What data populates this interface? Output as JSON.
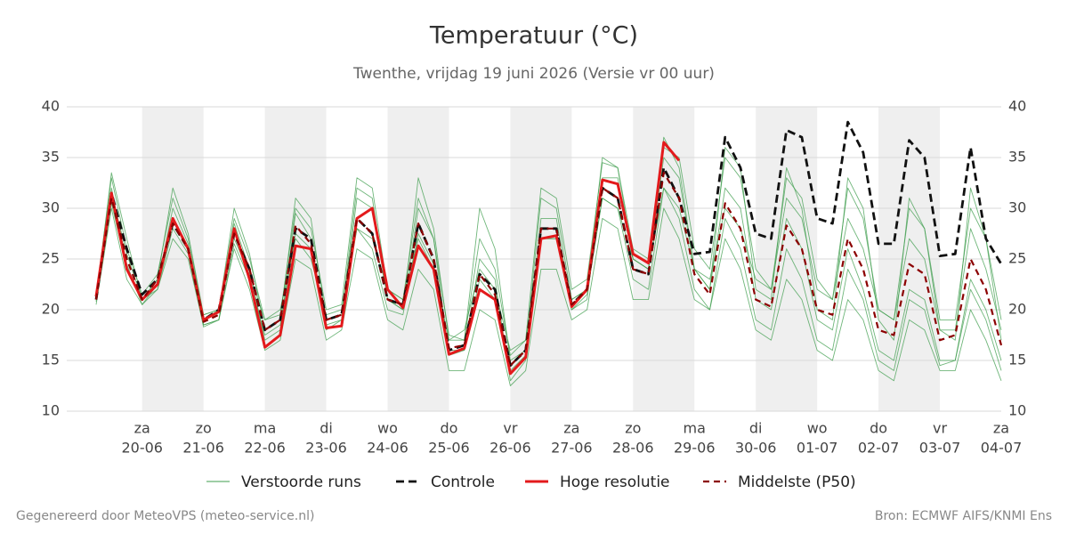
{
  "chart_data": {
    "type": "line",
    "title": "Temperatuur (°C)",
    "subtitle": "Twenthe, vrijdag 19 juni 2026 (Versie vr 00 uur)",
    "footer_left": "Gegenereerd door MeteoVPS (meteo-service.nl)",
    "footer_right": "Bron: ECMWF AIFS/KNMI Ens",
    "categories": [
      null,
      null,
      null,
      [
        "za",
        "20-06"
      ],
      null,
      null,
      null,
      [
        "zo",
        "21-06"
      ],
      null,
      null,
      null,
      [
        "ma",
        "22-06"
      ],
      null,
      null,
      null,
      [
        "di",
        "23-06"
      ],
      null,
      null,
      null,
      [
        "wo",
        "24-06"
      ],
      null,
      null,
      null,
      [
        "do",
        "25-06"
      ],
      null,
      null,
      null,
      [
        "vr",
        "26-06"
      ],
      null,
      null,
      null,
      [
        "za",
        "27-06"
      ],
      null,
      null,
      null,
      [
        "zo",
        "28-06"
      ],
      null,
      null,
      null,
      [
        "ma",
        "29-06"
      ],
      null,
      null,
      null,
      [
        "di",
        "30-06"
      ],
      null,
      null,
      null,
      [
        "wo",
        "01-07"
      ],
      null,
      null,
      null,
      [
        "do",
        "02-07"
      ],
      null,
      null,
      null,
      [
        "vr",
        "03-07"
      ],
      null,
      null,
      null,
      [
        "za",
        "04-07"
      ]
    ],
    "ylim": [
      10,
      40
    ],
    "yticks": [
      10,
      15,
      20,
      25,
      30,
      35,
      40
    ],
    "grid": true,
    "series": [
      {
        "name": "Verstoorde runs",
        "color": "#3f9e4d",
        "style": "thin",
        "values": [
          [
            21.5,
            33,
            26,
            21.5,
            23.5,
            31,
            27,
            19.5,
            20,
            29,
            25,
            19,
            19.5,
            30,
            28,
            20,
            20.5,
            33,
            32,
            22,
            21,
            31,
            27,
            17.5,
            17,
            27,
            24,
            15.5,
            17,
            32,
            31,
            22,
            23,
            34.5,
            34,
            26,
            25,
            36,
            35,
            26,
            24,
            35,
            33,
            24,
            22,
            33,
            31,
            23,
            21,
            32,
            29,
            20,
            19,
            30,
            28,
            19,
            19,
            30,
            27,
            19
          ],
          [
            20.5,
            30,
            23,
            20.5,
            22,
            27,
            25,
            18.5,
            19,
            26,
            22,
            16,
            17,
            25,
            24,
            17,
            18,
            26,
            25,
            19,
            18,
            24,
            22,
            14,
            14,
            20,
            19,
            12.5,
            14,
            24,
            24,
            19,
            20,
            29,
            28,
            21,
            21,
            30,
            27,
            21,
            20,
            27,
            24,
            18,
            17,
            23,
            21,
            16,
            15,
            21,
            19,
            14,
            13,
            19,
            18,
            14,
            14,
            20,
            17,
            13
          ],
          [
            21,
            32,
            24.5,
            20.5,
            22.5,
            30,
            26.5,
            18.5,
            19,
            28.5,
            24,
            17,
            18,
            29.5,
            27,
            18,
            19,
            31,
            30,
            21,
            20,
            30,
            27,
            15.5,
            16,
            25,
            23,
            13,
            15,
            29,
            29,
            20,
            21,
            33,
            33,
            25,
            24,
            35,
            33,
            24,
            22,
            32,
            30,
            21,
            20,
            29,
            26,
            19,
            18,
            26,
            22,
            16,
            15,
            22,
            21,
            15,
            15,
            23,
            20,
            15
          ],
          [
            21.2,
            31.5,
            25.5,
            21,
            23,
            29,
            26,
            19,
            20,
            27,
            23.5,
            19,
            20,
            27,
            25,
            19.5,
            20,
            28,
            27,
            22,
            21,
            27,
            24,
            17,
            18,
            24,
            22,
            16,
            17,
            27,
            27,
            21,
            22,
            31,
            30,
            25,
            24,
            32,
            30,
            24,
            23,
            30,
            28,
            23,
            22,
            31,
            29,
            22,
            21,
            29,
            26,
            20,
            19,
            27,
            25,
            18,
            18,
            28,
            24,
            18
          ],
          [
            20.8,
            30.5,
            24,
            21,
            22,
            28,
            25.5,
            18.3,
            19,
            26.5,
            23,
            17.5,
            18.5,
            27.5,
            26,
            18.5,
            19,
            28,
            26,
            20,
            19.5,
            27.5,
            24.5,
            16,
            16,
            23,
            21,
            14,
            15.5,
            27,
            27,
            20,
            21.5,
            31,
            30,
            23,
            22,
            32,
            29,
            22,
            20,
            29,
            26,
            19,
            18,
            26,
            23,
            17,
            16,
            24,
            21,
            15,
            14,
            21,
            20,
            14.5,
            15,
            22,
            19,
            14
          ],
          [
            21,
            33.5,
            27,
            21,
            23,
            32,
            27.5,
            19.5,
            20,
            30,
            25.5,
            18,
            19,
            31,
            29,
            19,
            19.5,
            32,
            31,
            21,
            20,
            33,
            28,
            17,
            17,
            30,
            26,
            15,
            16,
            31,
            30,
            21,
            22,
            35,
            34,
            25,
            24,
            37,
            34,
            24,
            22,
            36,
            34,
            22,
            21,
            34,
            30,
            20,
            19,
            33,
            30,
            19,
            17,
            31,
            28,
            18,
            17,
            32,
            27,
            17
          ]
        ]
      },
      {
        "name": "Controle",
        "color": "#111111",
        "style": "dashed",
        "values": [
          21,
          31.5,
          26,
          21.5,
          23,
          28.5,
          26,
          19,
          20,
          27.5,
          24,
          18,
          19,
          28,
          27,
          19,
          19.5,
          29,
          27.5,
          21,
          20.5,
          28.5,
          25,
          16,
          16.5,
          23.5,
          22,
          14.5,
          16,
          28,
          28,
          20.5,
          22,
          32,
          31,
          24,
          23.5,
          34,
          31,
          25.5,
          25.7,
          37,
          34,
          27.5,
          27,
          37.7,
          37,
          29,
          28.5,
          38.5,
          35.5,
          26.5,
          26.5,
          36.7,
          35,
          25.3,
          25.5,
          36,
          27,
          24.5
        ]
      },
      {
        "name": "Hoge resolutie",
        "color": "#e31a1c",
        "style": "solid",
        "values": [
          21.3,
          31.5,
          24,
          21,
          22.5,
          29,
          26,
          19,
          19.8,
          28,
          23,
          16.3,
          17.5,
          26.3,
          26,
          18.2,
          18.4,
          29,
          30,
          22,
          20.2,
          26.3,
          24,
          15.6,
          16.2,
          22,
          21,
          13.7,
          15.3,
          27,
          27.3,
          20.3,
          22,
          32.8,
          32.4,
          25.5,
          24.6,
          36.5,
          34.7,
          null,
          null,
          null,
          null,
          null,
          null,
          null,
          null,
          null,
          null,
          null,
          null,
          null,
          null,
          null,
          null,
          null,
          null,
          null,
          null,
          null
        ]
      },
      {
        "name": "Middelste (P50)",
        "color": "#8b0000",
        "style": "dashed-thin",
        "values": [
          21,
          31,
          25,
          21,
          23,
          28.5,
          26,
          18.8,
          19.5,
          27.5,
          24,
          18,
          19,
          28.3,
          26.5,
          19,
          19.5,
          29,
          27.5,
          21,
          20.5,
          28.5,
          25,
          16.2,
          16.5,
          23.5,
          21.5,
          14.5,
          16,
          28,
          28,
          20.5,
          22,
          32,
          31,
          24,
          23.5,
          33.5,
          31,
          23.5,
          21.5,
          30.5,
          28,
          21,
          20.3,
          28.3,
          26,
          20,
          19.5,
          27,
          24,
          18,
          17.5,
          24.5,
          23.5,
          17,
          17.5,
          25,
          22,
          16.5
        ]
      }
    ]
  }
}
